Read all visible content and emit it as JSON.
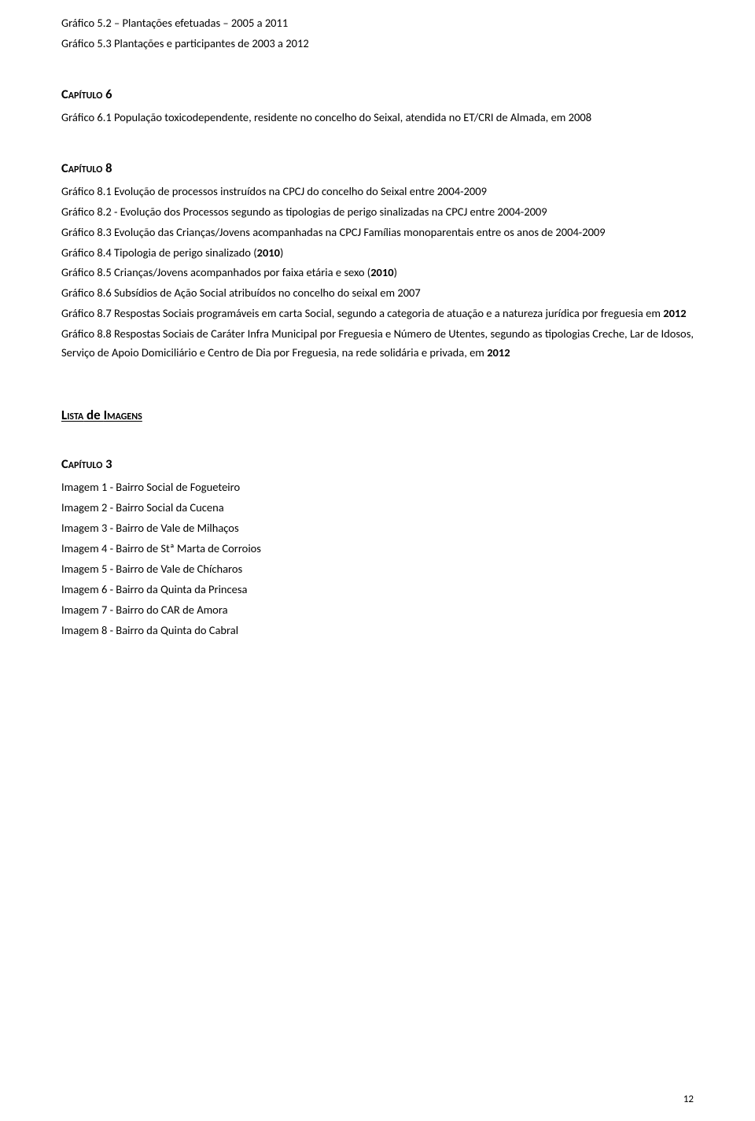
{
  "colors": {
    "text": "#000000",
    "background": "#ffffff"
  },
  "typography": {
    "body_fontsize_pt": 11,
    "heading_fontsize_pt": 12,
    "heading_weight": "bold",
    "body_weight": "normal",
    "font_family": "Calibri"
  },
  "top": {
    "g52": "Gráfico 5.2 – Plantações efetuadas – 2005 a 2011",
    "g53": "Gráfico 5.3 Plantações e participantes de 2003 a 2012"
  },
  "cap6": {
    "title": "Capítulo 6",
    "g61": "Gráfico 6.1 População toxicodependente, residente no concelho do Seixal, atendida no ET/CRI de Almada, em 2008"
  },
  "cap8": {
    "title": "Capítulo 8",
    "g81": "Gráfico 8.1 Evolução de processos instruídos na CPCJ do concelho do Seixal entre 2004-2009",
    "g82": "Gráfico 8.2 - Evolução dos Processos segundo as tipologias de perigo sinalizadas na CPCJ entre 2004-2009",
    "g83": "Gráfico 8.3 Evolução das Crianças/Jovens acompanhadas na CPCJ Famílias monoparentais entre os anos de 2004-2009",
    "g84_pre": "Gráfico 8.4 Tipologia de perigo sinalizado (",
    "g84_bold": "2010",
    "g84_post": ")",
    "g85_pre": "Gráfico 8.5 Crianças/Jovens acompanhados por faixa etária e sexo (",
    "g85_bold": "2010",
    "g85_post": ")",
    "g86": "Gráfico 8.6 Subsídios de Ação Social atribuídos no concelho do seixal em 2007",
    "g87_pre": "Gráfico 8.7 Respostas Sociais programáveis em carta Social, segundo a categoria de atuação e a natureza jurídica por freguesia em ",
    "g87_bold": "2012",
    "g88_pre": "Gráfico 8.8 Respostas Sociais de Caráter Infra Municipal por Freguesia e Número de Utentes, segundo as tipologias Creche, Lar de Idosos, Serviço de Apoio Domiciliário e Centro de Dia por Freguesia, na rede solidária e privada, em ",
    "g88_bold": "2012"
  },
  "lista": {
    "title_word1": "Lista",
    "title_mid": " de ",
    "title_word2": "Imagens"
  },
  "cap3": {
    "title": "Capítulo 3",
    "items": [
      "Imagem 1 - Bairro Social de Fogueteiro",
      "Imagem 2 - Bairro Social da Cucena",
      "Imagem 3 - Bairro de Vale de Milhaços",
      "Imagem 4 - Bairro de Stª Marta de Corroios",
      "Imagem 5 - Bairro de Vale de Chícharos",
      "Imagem 6 - Bairro da Quinta da Princesa",
      "Imagem 7 - Bairro do CAR de Amora",
      "Imagem 8 - Bairro da Quinta do Cabral"
    ]
  },
  "page_number": "12"
}
